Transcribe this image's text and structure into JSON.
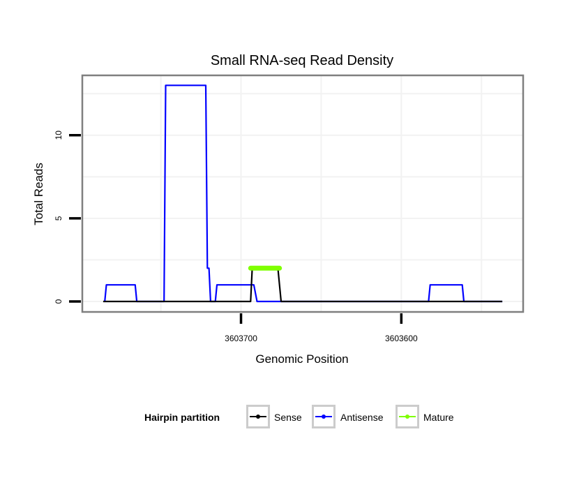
{
  "chart_data": {
    "type": "line",
    "title": "Small RNA-seq Read Density",
    "xlabel": "Genomic Position",
    "ylabel": "Total Reads",
    "xlim": [
      3603799,
      3603524
    ],
    "x_reversed": true,
    "ylim": [
      -0.63,
      13.6
    ],
    "x_ticks": [
      3603700,
      3603600
    ],
    "x_tick_labels": [
      "3603700",
      "3603600"
    ],
    "y_ticks": [
      0,
      5,
      10
    ],
    "y_tick_labels": [
      "0",
      "5",
      "10"
    ],
    "grid": true,
    "legend": {
      "title": "Hairpin partition",
      "placement": "bottom",
      "entries": [
        "Sense",
        "Antisense",
        "Mature"
      ]
    },
    "series": [
      {
        "name": "Sense",
        "color": "#000000",
        "x": [
          3603786,
          3603694,
          3603693,
          3603677,
          3603675,
          3603537
        ],
        "y": [
          0,
          0,
          2,
          2,
          0,
          0
        ]
      },
      {
        "name": "Antisense",
        "color": "#0000ff",
        "x": [
          3603785,
          3603784,
          3603766,
          3603765,
          3603748,
          3603747,
          3603722,
          3603721,
          3603720,
          3603719,
          3603716,
          3603715,
          3603692,
          3603690,
          3603583,
          3603582,
          3603562,
          3603561,
          3603537
        ],
        "y": [
          0,
          1,
          1,
          0,
          0,
          13,
          13,
          2,
          2,
          0,
          0,
          1,
          1,
          0,
          0,
          1,
          1,
          0,
          0
        ]
      },
      {
        "name": "Mature",
        "color": "#7fff00",
        "x": [
          3603694,
          3603676
        ],
        "y": [
          2,
          2
        ]
      }
    ]
  }
}
